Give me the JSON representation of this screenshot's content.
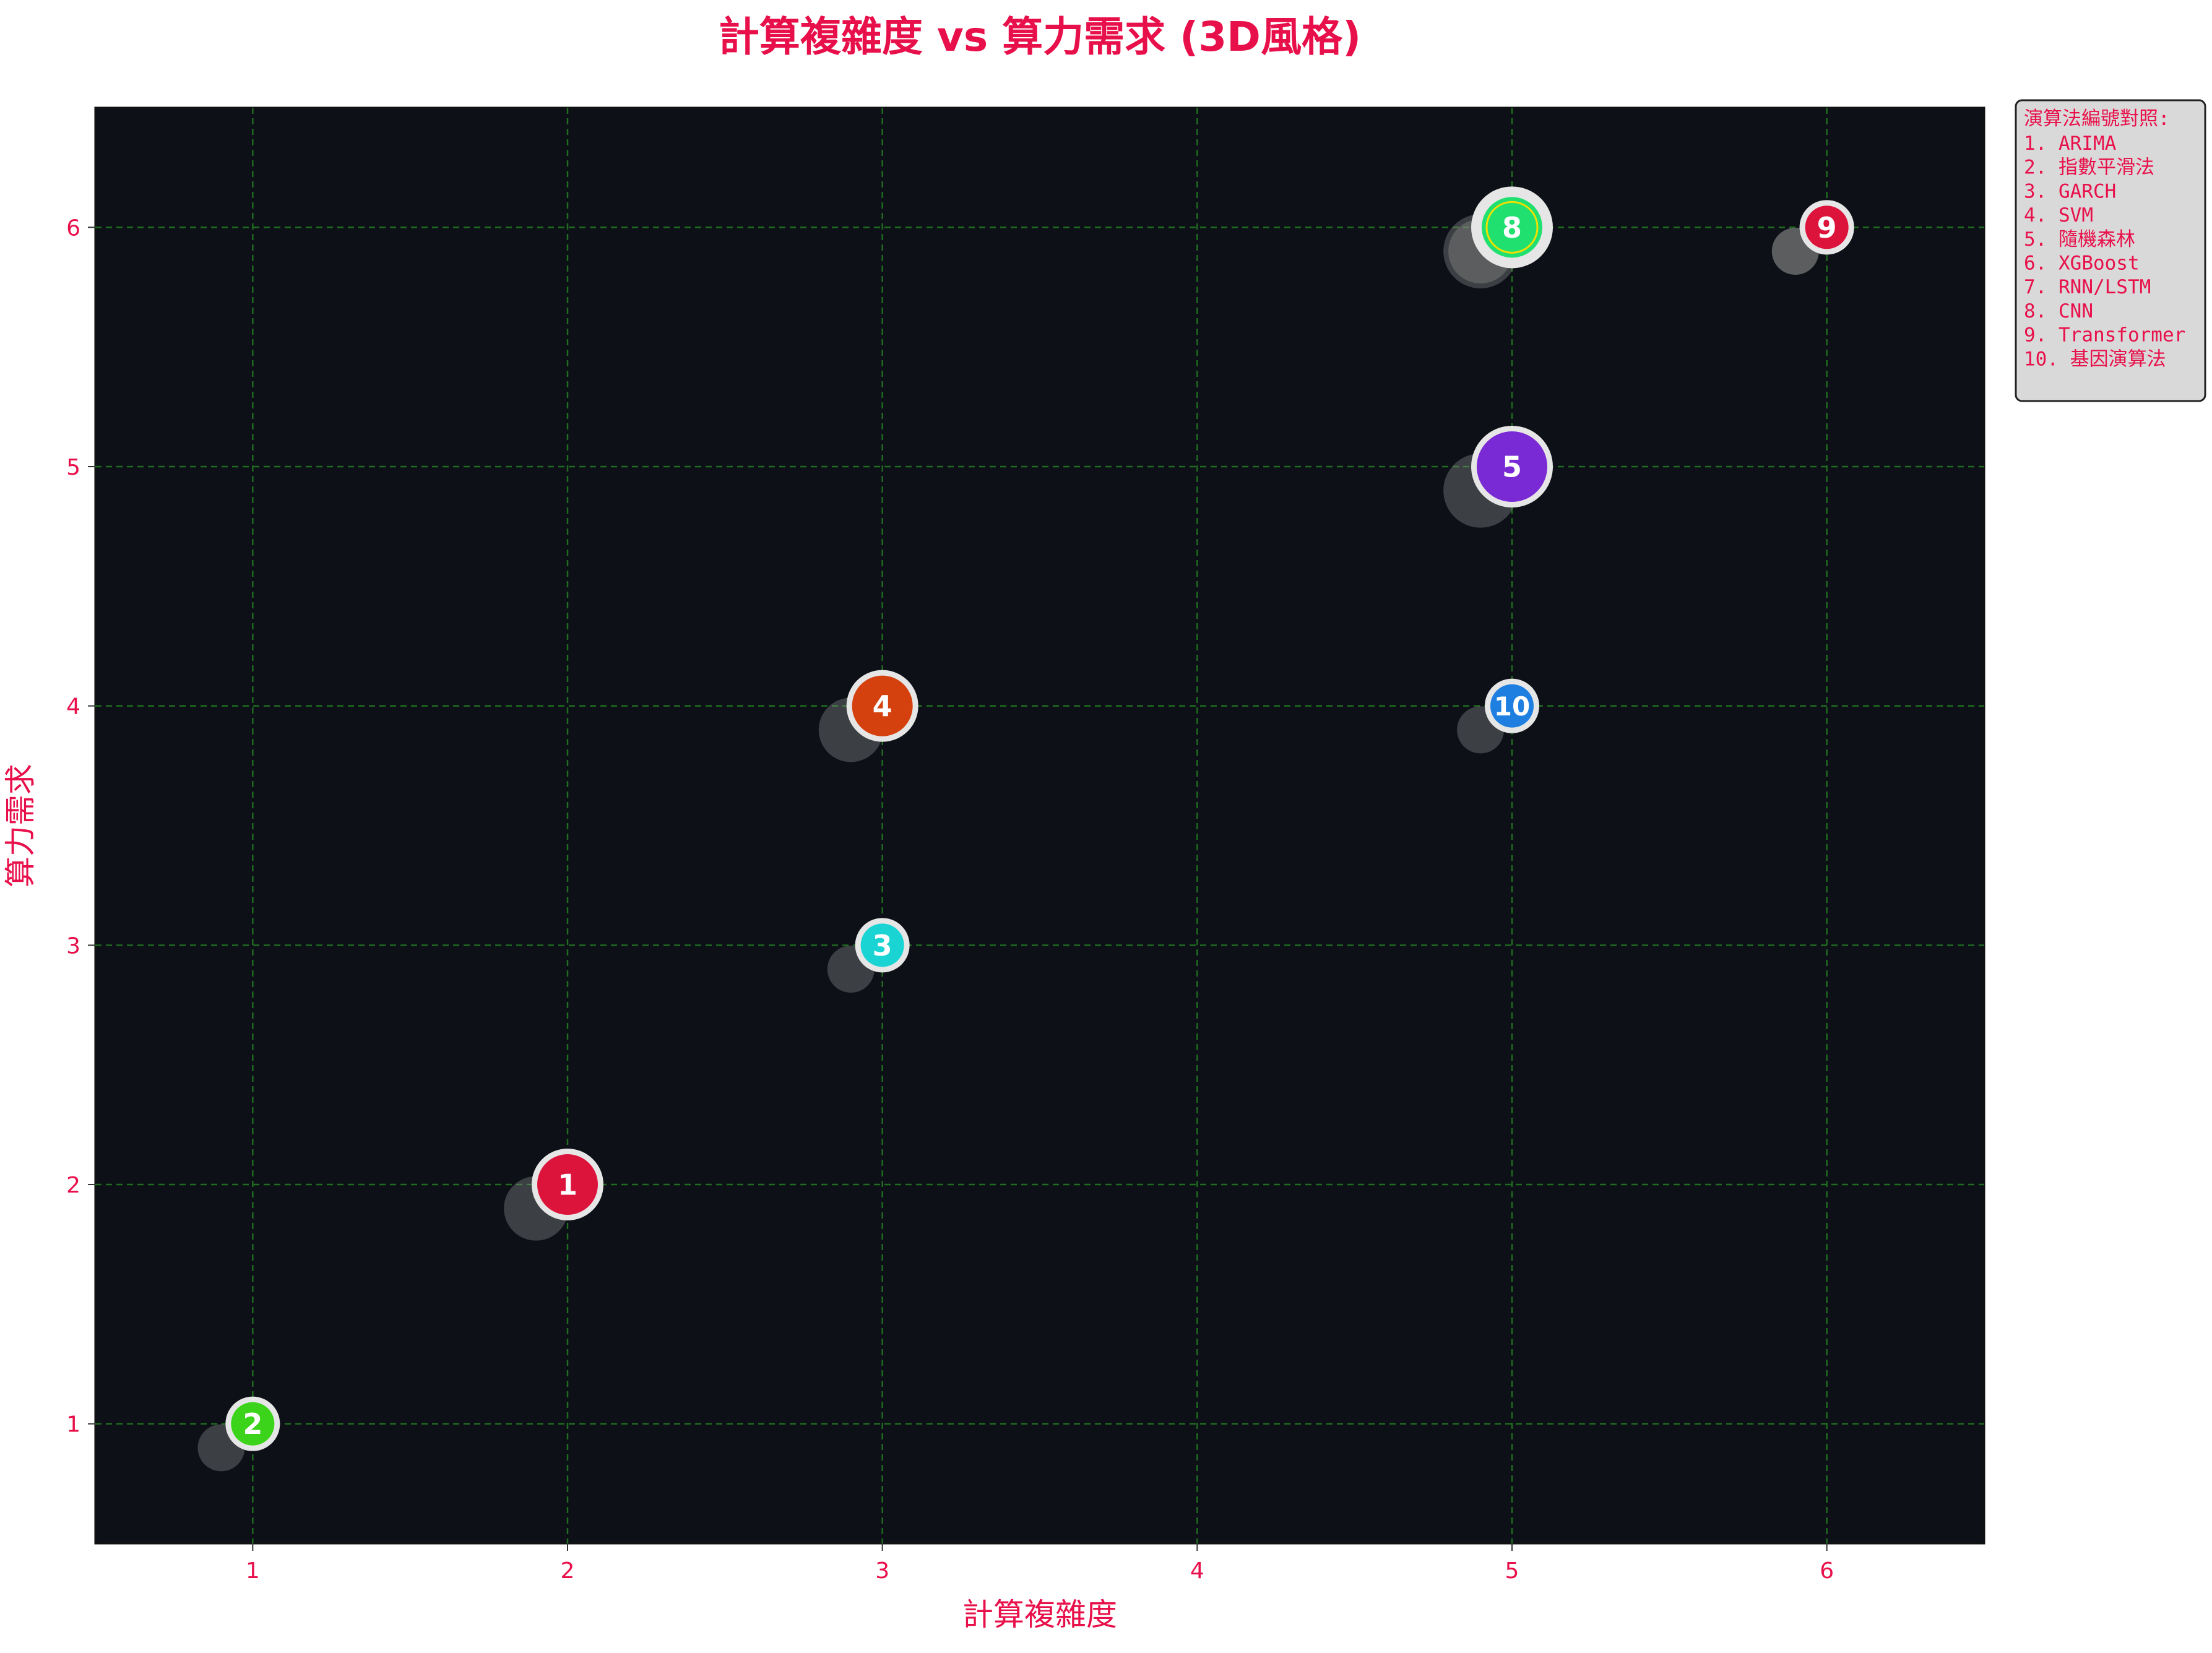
{
  "chart_data": {
    "type": "scatter",
    "title": "計算複雜度 vs 算力需求 (3D風格)",
    "xlabel": "計算複雜度",
    "ylabel": "算力需求",
    "xlim": [
      0.5,
      6.5
    ],
    "ylim": [
      0.5,
      6.5
    ],
    "xticks": [
      "1",
      "2",
      "3",
      "4",
      "5",
      "6"
    ],
    "yticks": [
      "1",
      "2",
      "3",
      "4",
      "5",
      "6"
    ],
    "grid": true,
    "legend_position": "outside-top-right",
    "points": [
      {
        "label": "1",
        "x": 2,
        "y": 2,
        "size": "large",
        "color": "#dc143c"
      },
      {
        "label": "2",
        "x": 1,
        "y": 1,
        "size": "medium",
        "color": "#3cd41a"
      },
      {
        "label": "3",
        "x": 3,
        "y": 3,
        "size": "medium",
        "color": "#1ad4d4"
      },
      {
        "label": "4",
        "x": 3,
        "y": 4,
        "size": "large",
        "color": "#d4410e"
      },
      {
        "label": "5",
        "x": 5,
        "y": 5,
        "size": "xlarge",
        "color": "#7a2ad4"
      },
      {
        "label": "6",
        "x": 5,
        "y": 6,
        "size": "xlarge",
        "color": "#20c060"
      },
      {
        "label": "7",
        "x": 6,
        "y": 6,
        "size": "medium",
        "color": "#dc143c"
      },
      {
        "label": "8",
        "x": 5,
        "y": 6,
        "size": "large",
        "color": "#20e070"
      },
      {
        "label": "9",
        "x": 6,
        "y": 6,
        "size": "medium",
        "color": "#dc143c"
      },
      {
        "label": "10",
        "x": 5,
        "y": 4,
        "size": "medium",
        "color": "#1e7fe0"
      }
    ],
    "legend": {
      "title": "演算法編號對照:",
      "items": [
        "1. ARIMA",
        "2. 指數平滑法",
        "3. GARCH",
        "4. SVM",
        "5. 隨機森林",
        "6. XGBoost",
        "7. RNN/LSTM",
        "8. CNN",
        "9. Transformer",
        "10. 基因演算法"
      ]
    }
  },
  "colors": {
    "accent": "#e8104a",
    "plot_background": "#0d1117",
    "grid": "#1f6b1f",
    "legend_background": "#d9d9d9"
  }
}
